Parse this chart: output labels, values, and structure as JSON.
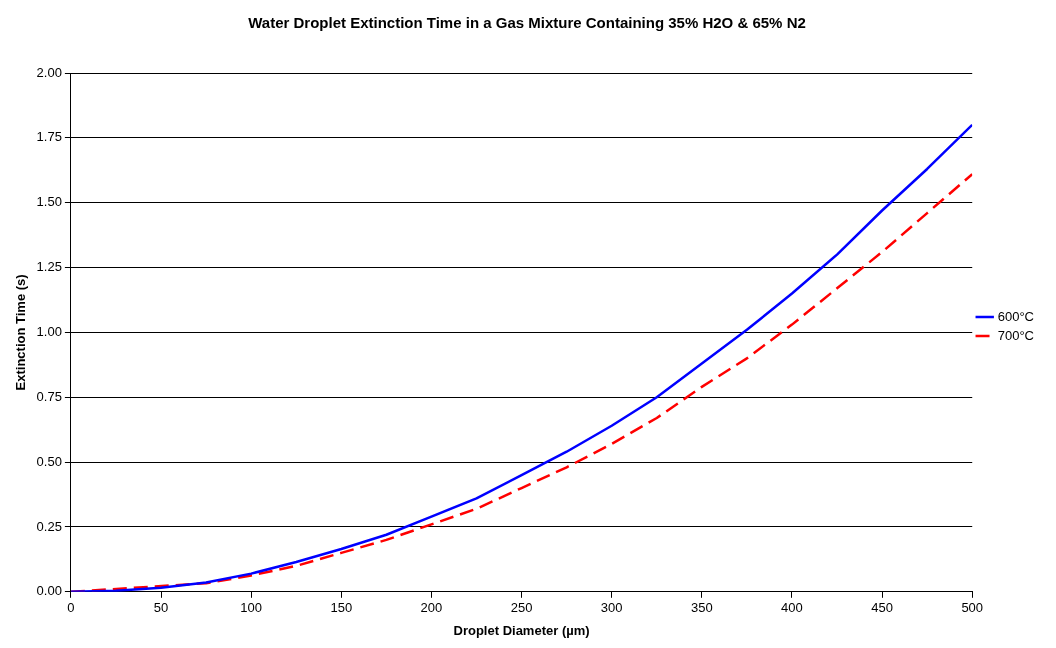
{
  "chart_data": {
    "type": "line",
    "title": "Water Droplet Extinction Time in a Gas Mixture Containing 35% H2O & 65% N2",
    "xlabel": "Droplet Diameter (µm)",
    "ylabel": "Extinction Time (s)",
    "x": [
      0,
      25,
      50,
      75,
      100,
      125,
      150,
      175,
      200,
      225,
      250,
      275,
      300,
      325,
      350,
      375,
      400,
      425,
      450,
      475,
      500
    ],
    "series": [
      {
        "name": "600°C",
        "color": "#0000ff",
        "line_style": "solid",
        "values": [
          0,
          0.004,
          0.016,
          0.036,
          0.07,
          0.115,
          0.165,
          0.22,
          0.29,
          0.36,
          0.45,
          0.54,
          0.64,
          0.75,
          0.88,
          1.01,
          1.15,
          1.3,
          1.47,
          1.63,
          1.8
        ]
      },
      {
        "name": "700°C",
        "color": "#ff0000",
        "line_style": "dashed",
        "values": [
          0,
          null,
          null,
          0.033,
          0.063,
          0.1,
          0.15,
          0.2,
          0.26,
          0.32,
          0.4,
          0.48,
          0.57,
          0.67,
          0.79,
          0.9,
          1.03,
          1.17,
          1.31,
          1.46,
          1.61
        ]
      }
    ],
    "xlim": [
      0,
      500
    ],
    "xticks": [
      0,
      50,
      100,
      150,
      200,
      250,
      300,
      350,
      400,
      450,
      500
    ],
    "ylim": [
      0,
      2
    ],
    "yticks": [
      {
        "value": 0,
        "label": "0.00"
      },
      {
        "value": 0.25,
        "label": "0.25"
      },
      {
        "value": 0.5,
        "label": "0.50"
      },
      {
        "value": 0.75,
        "label": "0.75"
      },
      {
        "value": 1,
        "label": "1.00"
      },
      {
        "value": 1.25,
        "label": "1.25"
      },
      {
        "value": 1.5,
        "label": "1.50"
      },
      {
        "value": 1.75,
        "label": "1.75"
      },
      {
        "value": 2,
        "label": "2.00"
      }
    ],
    "grid": "y",
    "legend": "right",
    "marker": "none"
  }
}
